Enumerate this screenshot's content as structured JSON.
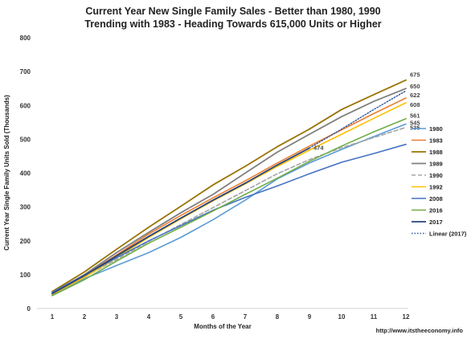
{
  "chart_data": {
    "type": "line",
    "title": [
      "Current Year New Single Family Sales - Better than 1980, 1990",
      "Trending with 1983 - Heading Towards 615,000 Units or Higher"
    ],
    "xlabel": "Months of the Year",
    "ylabel": "Current Year Single Family Units Sold (Thousands)",
    "source": "http://www.itstheeconomy.info",
    "x": [
      1,
      2,
      3,
      4,
      5,
      6,
      7,
      8,
      9,
      10,
      11,
      12
    ],
    "xlim": [
      1,
      12
    ],
    "ylim": [
      0,
      800
    ],
    "yticks": [
      0,
      100,
      200,
      300,
      400,
      500,
      600,
      700,
      800
    ],
    "grid": false,
    "legend": "right",
    "series": [
      {
        "name": "1980",
        "color": "#5B9BD5",
        "dash": "",
        "width": 1.6,
        "values": [
          39,
          88,
          127,
          165,
          210,
          262,
          320,
          383,
          430,
          470,
          508,
          545
        ],
        "end_label": "545"
      },
      {
        "name": "1983",
        "color": "#ED7D31",
        "dash": "",
        "width": 1.6,
        "values": [
          45,
          98,
          158,
          220,
          275,
          327,
          377,
          430,
          480,
          528,
          576,
          622
        ],
        "end_label": "622"
      },
      {
        "name": "1988",
        "color": "#997300",
        "dash": "",
        "width": 1.8,
        "values": [
          50,
          108,
          175,
          240,
          302,
          365,
          420,
          478,
          530,
          588,
          632,
          675
        ],
        "end_label": "675"
      },
      {
        "name": "1989",
        "color": "#7F7F7F",
        "dash": "",
        "width": 1.8,
        "values": [
          47,
          100,
          165,
          225,
          283,
          337,
          400,
          462,
          515,
          567,
          612,
          650
        ],
        "end_label": "650"
      },
      {
        "name": "1990",
        "color": "#A5A5A5",
        "dash": "5,3",
        "width": 1.6,
        "values": [
          43,
          93,
          145,
          198,
          248,
          298,
          348,
          398,
          440,
          475,
          505,
          535
        ],
        "end_label": "535"
      },
      {
        "name": "1992",
        "color": "#FFC000",
        "dash": "",
        "width": 1.6,
        "values": [
          42,
          92,
          150,
          210,
          265,
          318,
          368,
          420,
          468,
          515,
          562,
          608
        ],
        "end_label": "608"
      },
      {
        "name": "2008",
        "color": "#4472C4",
        "dash": "",
        "width": 1.6,
        "values": [
          48,
          98,
          150,
          200,
          245,
          290,
          328,
          362,
          398,
          432,
          458,
          485
        ],
        "end_label": ""
      },
      {
        "name": "2016",
        "color": "#70AD47",
        "dash": "",
        "width": 1.6,
        "values": [
          38,
          85,
          140,
          193,
          240,
          288,
          337,
          385,
          435,
          480,
          522,
          561
        ],
        "end_label": "561"
      },
      {
        "name": "2017",
        "color": "#264478",
        "dash": "",
        "width": 1.8,
        "values": [
          44,
          97,
          155,
          213,
          267,
          320,
          370,
          424,
          474,
          null,
          null,
          null
        ],
        "end_label": "474"
      },
      {
        "name": "Linear (2017)",
        "color": "#2F5597",
        "dash": "1.5,2",
        "width": 1.4,
        "values": [
          null,
          null,
          null,
          null,
          null,
          null,
          null,
          null,
          474,
          530,
          588,
          643
        ],
        "end_label": ""
      }
    ]
  }
}
